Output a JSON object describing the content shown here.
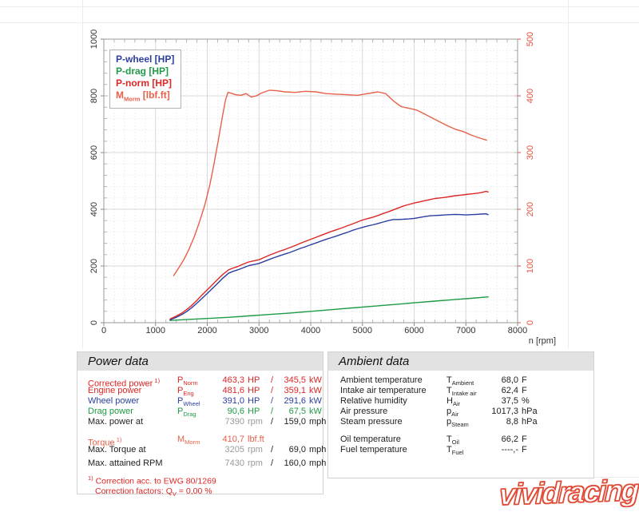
{
  "page": {
    "watermark": "vividracing"
  },
  "chart_data": {
    "type": "line",
    "xlabel": "n [rpm]",
    "x_ticks": [
      0,
      1000,
      2000,
      3000,
      4000,
      5000,
      6000,
      7000,
      8000
    ],
    "x_range": [
      0,
      8000
    ],
    "left_axis": {
      "min": 0,
      "max": 1000,
      "ticks": [
        0,
        200,
        400,
        600,
        800,
        1000
      ],
      "color": "#333333"
    },
    "right_axis": {
      "min": 0,
      "max": 500,
      "ticks": [
        0,
        100,
        200,
        300,
        400,
        500
      ],
      "color": "#e2503c"
    },
    "grid": true,
    "legend_position": "top-left",
    "legend": [
      {
        "pre": "P-wheel [HP]",
        "sub": "",
        "post": "",
        "color": "#2b3fa0"
      },
      {
        "pre": "P-drag [HP]",
        "sub": "",
        "post": "",
        "color": "#1f9b47"
      },
      {
        "pre": "P-norm [HP]",
        "sub": "",
        "post": "",
        "color": "#dd2626"
      },
      {
        "pre": "M",
        "sub": "Morm",
        "post": " [lbf.ft]",
        "color": "#e8604a"
      }
    ],
    "series": [
      {
        "name": "P-drag",
        "axis": "left",
        "color": "#1f9b47",
        "points": [
          [
            1280,
            8
          ],
          [
            1600,
            11
          ],
          [
            2000,
            15
          ],
          [
            2400,
            19
          ],
          [
            2800,
            24
          ],
          [
            3200,
            29
          ],
          [
            3600,
            34
          ],
          [
            4000,
            40
          ],
          [
            4400,
            46
          ],
          [
            4800,
            52
          ],
          [
            5200,
            58
          ],
          [
            5600,
            64
          ],
          [
            6000,
            70
          ],
          [
            6400,
            76
          ],
          [
            6800,
            82
          ],
          [
            7100,
            86
          ],
          [
            7430,
            91
          ]
        ]
      },
      {
        "name": "P-wheel",
        "axis": "left",
        "color": "#2b3fa0",
        "points": [
          [
            1280,
            10
          ],
          [
            1400,
            19
          ],
          [
            1500,
            28
          ],
          [
            1600,
            39
          ],
          [
            1700,
            53
          ],
          [
            1800,
            69
          ],
          [
            1900,
            86
          ],
          [
            2000,
            103
          ],
          [
            2100,
            121
          ],
          [
            2200,
            139
          ],
          [
            2300,
            157
          ],
          [
            2410,
            174
          ],
          [
            2500,
            181
          ],
          [
            2600,
            187
          ],
          [
            2700,
            194
          ],
          [
            2800,
            201
          ],
          [
            2900,
            205
          ],
          [
            3000,
            209
          ],
          [
            3100,
            216
          ],
          [
            3200,
            223
          ],
          [
            3300,
            230
          ],
          [
            3400,
            236
          ],
          [
            3500,
            242
          ],
          [
            3600,
            248
          ],
          [
            3700,
            255
          ],
          [
            3800,
            262
          ],
          [
            3900,
            268
          ],
          [
            4000,
            275
          ],
          [
            4100,
            281
          ],
          [
            4200,
            288
          ],
          [
            4300,
            294
          ],
          [
            4400,
            300
          ],
          [
            4500,
            306
          ],
          [
            4600,
            312
          ],
          [
            4700,
            318
          ],
          [
            4800,
            325
          ],
          [
            4900,
            331
          ],
          [
            5000,
            336
          ],
          [
            5100,
            341
          ],
          [
            5200,
            345
          ],
          [
            5300,
            350
          ],
          [
            5400,
            355
          ],
          [
            5500,
            360
          ],
          [
            5600,
            364
          ],
          [
            5700,
            364
          ],
          [
            5800,
            365
          ],
          [
            5900,
            366
          ],
          [
            6000,
            368
          ],
          [
            6100,
            371
          ],
          [
            6200,
            374
          ],
          [
            6300,
            377
          ],
          [
            6400,
            378
          ],
          [
            6500,
            379
          ],
          [
            6600,
            380
          ],
          [
            6700,
            381
          ],
          [
            6800,
            382
          ],
          [
            6900,
            381
          ],
          [
            7000,
            380
          ],
          [
            7100,
            381
          ],
          [
            7200,
            382
          ],
          [
            7300,
            383
          ],
          [
            7390,
            384
          ],
          [
            7430,
            381
          ]
        ]
      },
      {
        "name": "P-norm",
        "axis": "left",
        "color": "#dd2626",
        "points": [
          [
            1280,
            13
          ],
          [
            1400,
            23
          ],
          [
            1500,
            33
          ],
          [
            1600,
            46
          ],
          [
            1700,
            61
          ],
          [
            1800,
            79
          ],
          [
            1900,
            98
          ],
          [
            2000,
            116
          ],
          [
            2100,
            134
          ],
          [
            2200,
            153
          ],
          [
            2300,
            170
          ],
          [
            2410,
            186
          ],
          [
            2500,
            193
          ],
          [
            2600,
            199
          ],
          [
            2700,
            207
          ],
          [
            2800,
            214
          ],
          [
            2900,
            218
          ],
          [
            3000,
            222
          ],
          [
            3100,
            230
          ],
          [
            3200,
            238
          ],
          [
            3300,
            245
          ],
          [
            3400,
            252
          ],
          [
            3500,
            258
          ],
          [
            3600,
            265
          ],
          [
            3700,
            272
          ],
          [
            3800,
            280
          ],
          [
            3900,
            287
          ],
          [
            4000,
            294
          ],
          [
            4100,
            301
          ],
          [
            4200,
            308
          ],
          [
            4300,
            315
          ],
          [
            4400,
            322
          ],
          [
            4500,
            328
          ],
          [
            4600,
            334
          ],
          [
            4700,
            341
          ],
          [
            4800,
            348
          ],
          [
            4900,
            355
          ],
          [
            5000,
            362
          ],
          [
            5100,
            367
          ],
          [
            5200,
            372
          ],
          [
            5300,
            378
          ],
          [
            5400,
            385
          ],
          [
            5500,
            391
          ],
          [
            5600,
            398
          ],
          [
            5700,
            405
          ],
          [
            5800,
            412
          ],
          [
            5900,
            417
          ],
          [
            6000,
            422
          ],
          [
            6100,
            426
          ],
          [
            6200,
            430
          ],
          [
            6300,
            434
          ],
          [
            6400,
            438
          ],
          [
            6500,
            440
          ],
          [
            6600,
            442
          ],
          [
            6700,
            445
          ],
          [
            6800,
            448
          ],
          [
            6900,
            450
          ],
          [
            7000,
            452
          ],
          [
            7100,
            454
          ],
          [
            7200,
            456
          ],
          [
            7300,
            459
          ],
          [
            7390,
            463
          ],
          [
            7430,
            461
          ]
        ]
      },
      {
        "name": "M-Morm",
        "axis": "right",
        "color": "#e8604a",
        "points": [
          [
            1350,
            83
          ],
          [
            1450,
            97
          ],
          [
            1550,
            112
          ],
          [
            1650,
            130
          ],
          [
            1750,
            152
          ],
          [
            1850,
            178
          ],
          [
            1950,
            207
          ],
          [
            2050,
            243
          ],
          [
            2130,
            280
          ],
          [
            2210,
            320
          ],
          [
            2290,
            362
          ],
          [
            2350,
            392
          ],
          [
            2400,
            406
          ],
          [
            2450,
            405
          ],
          [
            2550,
            402
          ],
          [
            2650,
            401
          ],
          [
            2750,
            404
          ],
          [
            2850,
            398
          ],
          [
            2950,
            400
          ],
          [
            3050,
            405
          ],
          [
            3205,
            410
          ],
          [
            3350,
            409
          ],
          [
            3500,
            407
          ],
          [
            3700,
            406
          ],
          [
            3900,
            408
          ],
          [
            4100,
            407
          ],
          [
            4300,
            404
          ],
          [
            4500,
            403
          ],
          [
            4700,
            402
          ],
          [
            4900,
            401
          ],
          [
            5100,
            404
          ],
          [
            5300,
            407
          ],
          [
            5450,
            404
          ],
          [
            5600,
            391
          ],
          [
            5750,
            381
          ],
          [
            5900,
            378
          ],
          [
            6050,
            375
          ],
          [
            6200,
            368
          ],
          [
            6350,
            361
          ],
          [
            6500,
            354
          ],
          [
            6650,
            347
          ],
          [
            6800,
            341
          ],
          [
            6950,
            337
          ],
          [
            7100,
            331
          ],
          [
            7250,
            326
          ],
          [
            7400,
            322
          ]
        ]
      }
    ]
  },
  "power_panel": {
    "title": "Power data",
    "rows": [
      {
        "label": "Corrected power",
        "sup": "1)",
        "sym": "P",
        "symsub": "Norm",
        "v1": "463,3",
        "u1": "HP",
        "slash": "/",
        "v2": "345,5",
        "u2": "kW",
        "color": "red",
        "v1grey": false
      },
      {
        "label": "Engine power",
        "sup": "",
        "sym": "P",
        "symsub": "Eng",
        "v1": "481,6",
        "u1": "HP",
        "slash": "/",
        "v2": "359,1",
        "u2": "kW",
        "color": "red",
        "v1grey": false
      },
      {
        "label": "Wheel power",
        "sup": "",
        "sym": "P",
        "symsub": "Wheel",
        "v1": "391,0",
        "u1": "HP",
        "slash": "/",
        "v2": "291,6",
        "u2": "kW",
        "color": "blue",
        "v1grey": false
      },
      {
        "label": "Drag power",
        "sup": "",
        "sym": "P",
        "symsub": "Drag",
        "v1": "90,6",
        "u1": "HP",
        "slash": "/",
        "v2": "67,5",
        "u2": "kW",
        "color": "green",
        "v1grey": false
      },
      {
        "label": "Max. power at",
        "sup": "",
        "sym": "",
        "symsub": "",
        "v1": "7390",
        "u1": "rpm",
        "slash": "/",
        "v2": "159,0",
        "u2": "mph",
        "color": "black",
        "v1grey": true
      },
      {
        "spacer": 9
      },
      {
        "label": "Torque",
        "sup": "1)",
        "sym": "M",
        "symsub": "Morm",
        "v1": "410,7",
        "u1": "lbf.ft",
        "slash": "",
        "v2": "",
        "u2": "",
        "color": "orange",
        "v1grey": false
      },
      {
        "label": "Max. Torque at",
        "sup": "",
        "sym": "",
        "symsub": "",
        "v1": "3205",
        "u1": "rpm",
        "slash": "/",
        "v2": "69,0",
        "u2": "mph",
        "color": "black",
        "v1grey": true
      },
      {
        "spacer": 4
      },
      {
        "label": "Max. attained RPM",
        "sup": "",
        "sym": "",
        "symsub": "",
        "v1": "7430",
        "u1": "rpm",
        "slash": "/",
        "v2": "160,0",
        "u2": "mph",
        "color": "black",
        "v1grey": true
      }
    ],
    "footnote_sup": "1)",
    "footnote1": " Correction acc. to EWG 80/1269",
    "footnote2_pre": "Correction factors: Q",
    "footnote2_sub": "V",
    "footnote2_post": " =   0,00 %"
  },
  "ambient_panel": {
    "title": "Ambient data",
    "rows": [
      {
        "label": "Ambient temperature",
        "sym": "T",
        "symsub": "Ambient",
        "v": "68,0",
        "u": "F"
      },
      {
        "label": "Intake air temperature",
        "sym": "T",
        "symsub": "Intake air",
        "v": "62,4",
        "u": "F"
      },
      {
        "label": "Relative humidity",
        "sym": "H",
        "symsub": "Air",
        "v": "37,5",
        "u": "%"
      },
      {
        "label": "Air pressure",
        "sym": "p",
        "symsub": "Air",
        "v": "1017,3",
        "u": "hPa"
      },
      {
        "label": "Steam pressure",
        "sym": "p",
        "symsub": "Steam",
        "v": "8,8",
        "u": "hPa"
      },
      {
        "spacer": 9
      },
      {
        "label": "Oil temperature",
        "sym": "T",
        "symsub": "Oil",
        "v": "66,2",
        "u": "F"
      },
      {
        "label": "Fuel temperature",
        "sym": "T",
        "symsub": "Fuel",
        "v": "----,-",
        "u": "F"
      }
    ]
  }
}
